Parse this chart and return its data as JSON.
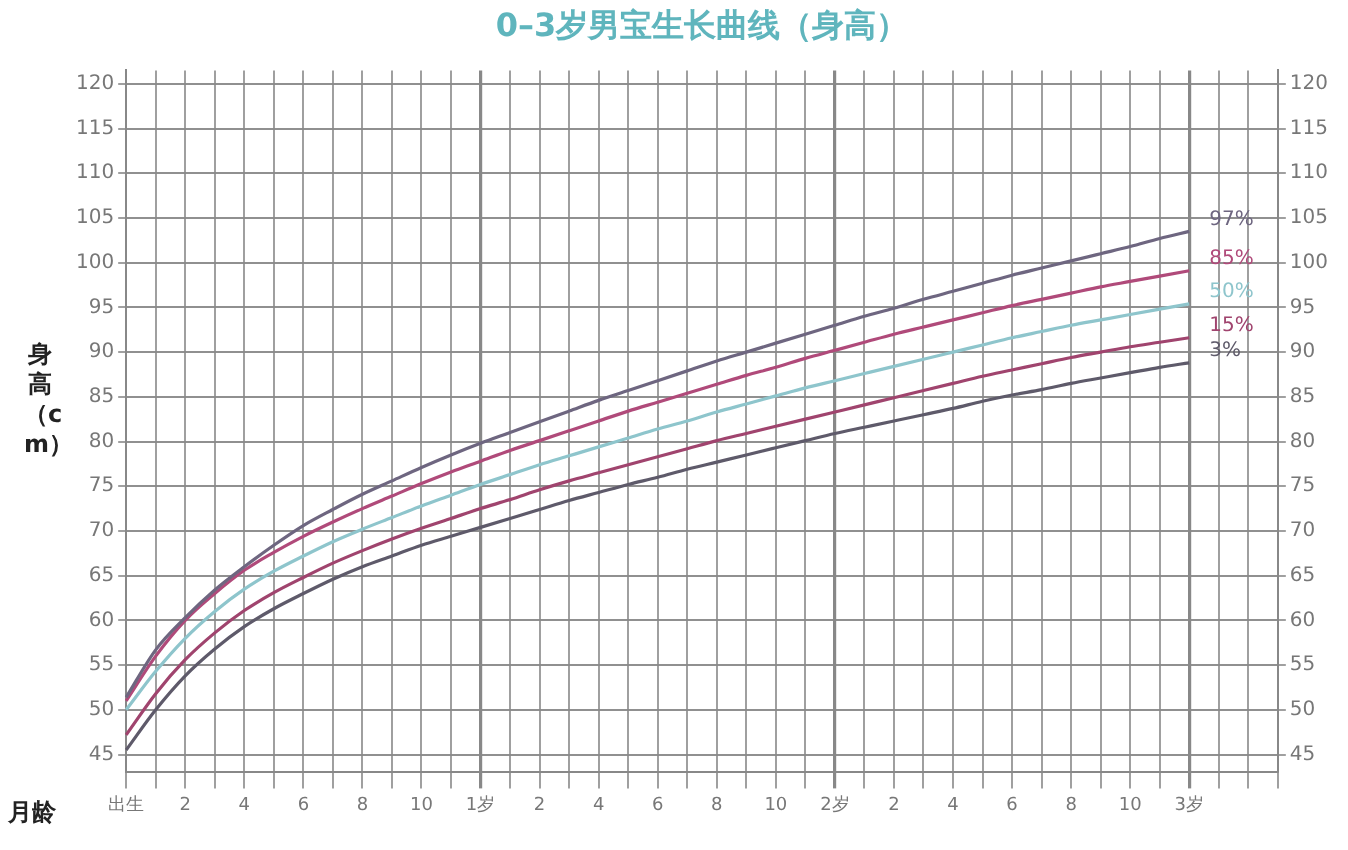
{
  "chart_data": {
    "type": "line",
    "title": "0–3岁男宝生长曲线（身高）",
    "xlabel": "月龄",
    "ylabel": "身高（cm）",
    "categories": [
      "出生",
      null,
      "2",
      null,
      "4",
      null,
      "6",
      null,
      "8",
      null,
      "10",
      null,
      "1岁",
      null,
      "2",
      null,
      "4",
      null,
      "6",
      null,
      "8",
      null,
      "10",
      null,
      "2岁",
      null,
      "2",
      null,
      "4",
      null,
      "6",
      null,
      "8",
      null,
      "10",
      null,
      "3岁",
      null,
      null,
      null
    ],
    "series": [
      {
        "name": "97%",
        "color": "#6e6680",
        "values": [
          51.4,
          56.7,
          60.3,
          63.4,
          66.0,
          68.4,
          70.6,
          72.4,
          74.1,
          75.6,
          77.1,
          78.5,
          79.8,
          81.0,
          82.2,
          83.4,
          84.6,
          85.7,
          86.8,
          87.9,
          89.0,
          90.0,
          91.0,
          92.0,
          93.0,
          94.0,
          94.9,
          95.9,
          96.8,
          97.7,
          98.6,
          99.4,
          100.2,
          101.0,
          101.8,
          102.7,
          103.5,
          null,
          null,
          null
        ]
      },
      {
        "name": "85%",
        "color": "#b04a7a",
        "values": [
          51.0,
          56.0,
          60.0,
          63.0,
          65.6,
          67.6,
          69.4,
          71.0,
          72.5,
          73.9,
          75.3,
          76.6,
          77.8,
          79.0,
          80.1,
          81.2,
          82.3,
          83.4,
          84.4,
          85.4,
          86.4,
          87.4,
          88.3,
          89.3,
          90.2,
          91.1,
          92.0,
          92.8,
          93.6,
          94.4,
          95.2,
          95.9,
          96.6,
          97.3,
          97.9,
          98.5,
          99.1,
          null,
          null,
          null
        ]
      },
      {
        "name": "50%",
        "color": "#8ec5cc",
        "values": [
          50.0,
          54.3,
          58.0,
          61.0,
          63.5,
          65.5,
          67.2,
          68.8,
          70.2,
          71.5,
          72.8,
          74.0,
          75.2,
          76.3,
          77.4,
          78.4,
          79.4,
          80.4,
          81.4,
          82.3,
          83.3,
          84.2,
          85.1,
          86.0,
          86.8,
          87.6,
          88.4,
          89.2,
          90.0,
          90.8,
          91.6,
          92.3,
          93.0,
          93.6,
          94.2,
          94.8,
          95.4,
          null,
          null,
          null
        ]
      },
      {
        "name": "15%",
        "color": "#a0446e",
        "values": [
          47.2,
          51.8,
          55.6,
          58.6,
          61.1,
          63.1,
          64.8,
          66.4,
          67.8,
          69.1,
          70.3,
          71.4,
          72.5,
          73.5,
          74.6,
          75.6,
          76.5,
          77.4,
          78.3,
          79.2,
          80.1,
          80.9,
          81.7,
          82.5,
          83.3,
          84.1,
          84.9,
          85.7,
          86.5,
          87.3,
          88.0,
          88.7,
          89.4,
          90.0,
          90.6,
          91.1,
          91.6,
          null,
          null,
          null
        ]
      },
      {
        "name": "3%",
        "color": "#5e5a6a",
        "values": [
          45.5,
          50.0,
          53.8,
          56.8,
          59.3,
          61.3,
          63.0,
          64.6,
          66.0,
          67.2,
          68.4,
          69.4,
          70.4,
          71.4,
          72.4,
          73.4,
          74.3,
          75.2,
          76.0,
          76.9,
          77.7,
          78.5,
          79.3,
          80.1,
          80.9,
          81.6,
          82.3,
          83.0,
          83.7,
          84.5,
          85.2,
          85.8,
          86.5,
          87.1,
          87.7,
          88.3,
          88.8,
          null,
          null,
          null
        ]
      }
    ],
    "ylim": [
      43,
      121.5
    ],
    "yticks": [
      45,
      50,
      55,
      60,
      65,
      70,
      75,
      80,
      85,
      90,
      95,
      100,
      105,
      110,
      115,
      120
    ],
    "y2lim": [
      43,
      121.5
    ],
    "y2ticks": [
      45,
      50,
      55,
      60,
      65,
      70,
      75,
      80,
      85,
      90,
      95,
      100,
      105,
      110,
      115,
      120
    ],
    "grid": true,
    "legend": false,
    "marker": "none",
    "line_style": "solid"
  }
}
